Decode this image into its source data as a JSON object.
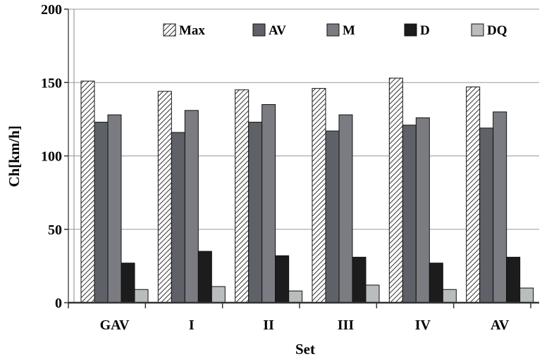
{
  "chart_data": {
    "type": "bar",
    "categories": [
      "GAV",
      "I",
      "II",
      "III",
      "IV",
      "AV"
    ],
    "series": [
      {
        "name": "Max",
        "values": [
          151,
          144,
          145,
          146,
          153,
          147
        ],
        "color": "#ffffff",
        "pattern": "hatch"
      },
      {
        "name": "AV",
        "values": [
          123,
          116,
          123,
          117,
          121,
          119
        ],
        "color": "#5f6168"
      },
      {
        "name": "M",
        "values": [
          128,
          131,
          135,
          128,
          126,
          130
        ],
        "color": "#7a7c82"
      },
      {
        "name": "D",
        "values": [
          27,
          35,
          32,
          31,
          27,
          31
        ],
        "color": "#1c1c1c"
      },
      {
        "name": "DQ",
        "values": [
          9,
          11,
          8,
          12,
          9,
          10
        ],
        "color": "#b9bdbd"
      }
    ],
    "ylabel": "Ch[km/h]",
    "xlabel": "Set",
    "ylim": [
      0,
      200
    ],
    "yticks": [
      0,
      50,
      100,
      150,
      200
    ],
    "grid": true,
    "legend": "top"
  }
}
